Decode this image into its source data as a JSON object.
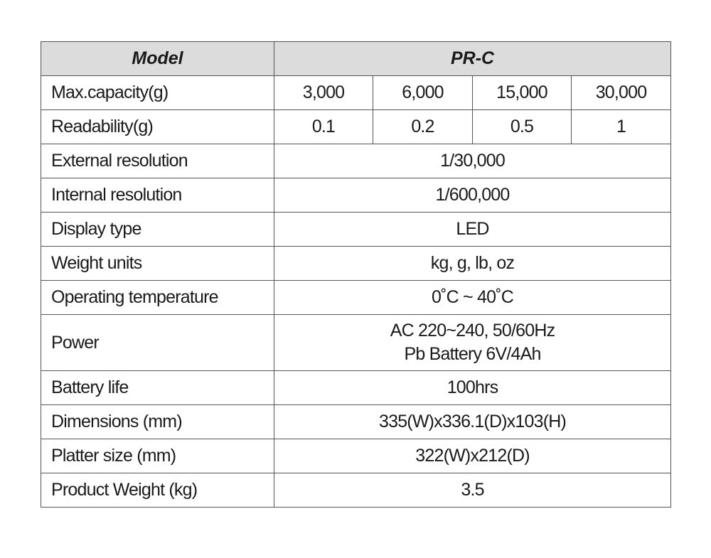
{
  "header": {
    "model_label": "Model",
    "model_value": "PR-C"
  },
  "capacity": {
    "label": "Max.capacity(g)",
    "values": [
      "3,000",
      "6,000",
      "15,000",
      "30,000"
    ]
  },
  "readability": {
    "label": "Readability(g)",
    "values": [
      "0.1",
      "0.2",
      "0.5",
      "1"
    ]
  },
  "rows": [
    {
      "label": "External resolution",
      "value": "1/30,000"
    },
    {
      "label": "Internal resolution",
      "value": "1/600,000"
    },
    {
      "label": "Display type",
      "value": "LED"
    },
    {
      "label": "Weight units",
      "value": "kg, g, lb, oz"
    },
    {
      "label": "Operating temperature",
      "value": "0˚C ~ 40˚C"
    }
  ],
  "power": {
    "label": "Power",
    "lines": [
      "AC 220~240, 50/60Hz",
      "Pb Battery 6V/4Ah"
    ]
  },
  "rows_after": [
    {
      "label": "Battery life",
      "value": "100hrs"
    },
    {
      "label": "Dimensions (mm)",
      "value": "335(W)x336.1(D)x103(H)"
    },
    {
      "label": "Platter size (mm)",
      "value": "322(W)x212(D)"
    },
    {
      "label": "Product Weight (kg)",
      "value": "3.5"
    }
  ],
  "colors": {
    "header_bg": "#dcdcdc",
    "border": "#555555",
    "text": "#1a1a1a"
  }
}
